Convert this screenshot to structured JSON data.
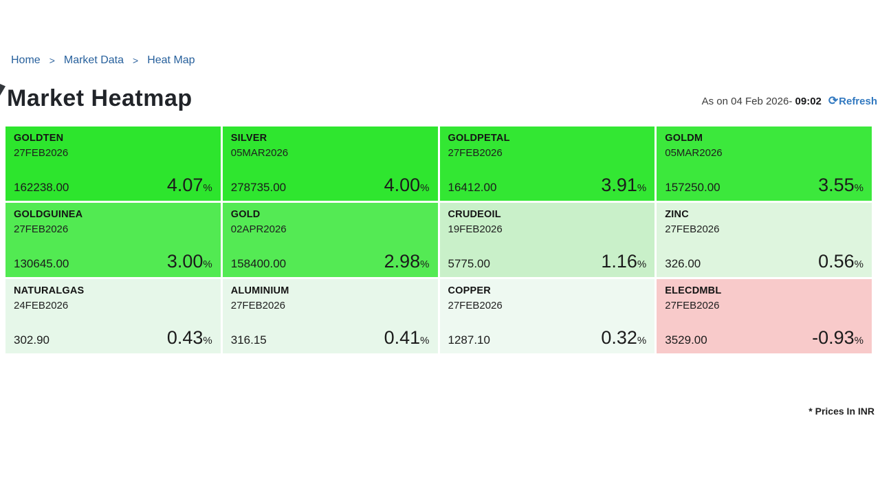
{
  "breadcrumb": {
    "separator": ">",
    "items": [
      {
        "label": "Home"
      },
      {
        "label": "Market Data"
      },
      {
        "label": "Heat Map"
      }
    ]
  },
  "header": {
    "title": "Market Heatmap",
    "as_on_prefix": "As on 04 Feb 2026- ",
    "as_on_time": "09:02",
    "refresh_icon": "⟳",
    "refresh_label": "Refresh"
  },
  "footer": {
    "note": "* Prices In INR"
  },
  "colors": {
    "link_blue": "#27609c",
    "refresh_blue": "#3279c0",
    "positive_strong": "#2fe62f",
    "negative": "#f8caca"
  },
  "chart_data": {
    "type": "heatmap",
    "title": "Market Heatmap",
    "value_unit": "%",
    "price_currency_note": "* Prices In INR",
    "tiles": [
      {
        "symbol": "GOLDTEN",
        "expiry": "27FEB2026",
        "price": "162238.00",
        "change_pct": "4.07",
        "bg": "#2de52d"
      },
      {
        "symbol": "SILVER",
        "expiry": "05MAR2026",
        "price": "278735.00",
        "change_pct": "4.00",
        "bg": "#2fe62f"
      },
      {
        "symbol": "GOLDPETAL",
        "expiry": "27FEB2026",
        "price": "16412.00",
        "change_pct": "3.91",
        "bg": "#33e733"
      },
      {
        "symbol": "GOLDM",
        "expiry": "05MAR2026",
        "price": "157250.00",
        "change_pct": "3.55",
        "bg": "#3ce83c"
      },
      {
        "symbol": "GOLDGUINEA",
        "expiry": "27FEB2026",
        "price": "130645.00",
        "change_pct": "3.00",
        "bg": "#52ea52"
      },
      {
        "symbol": "GOLD",
        "expiry": "02APR2026",
        "price": "158400.00",
        "change_pct": "2.98",
        "bg": "#54ea54"
      },
      {
        "symbol": "CRUDEOIL",
        "expiry": "19FEB2026",
        "price": "5775.00",
        "change_pct": "1.16",
        "bg": "#c9f0c9"
      },
      {
        "symbol": "ZINC",
        "expiry": "27FEB2026",
        "price": "326.00",
        "change_pct": "0.56",
        "bg": "#def5de"
      },
      {
        "symbol": "NATURALGAS",
        "expiry": "24FEB2026",
        "price": "302.90",
        "change_pct": "0.43",
        "bg": "#e6f7e9"
      },
      {
        "symbol": "ALUMINIUM",
        "expiry": "27FEB2026",
        "price": "316.15",
        "change_pct": "0.41",
        "bg": "#e7f7ea"
      },
      {
        "symbol": "COPPER",
        "expiry": "27FEB2026",
        "price": "1287.10",
        "change_pct": "0.32",
        "bg": "#eef9f1"
      },
      {
        "symbol": "ELECDMBL",
        "expiry": "27FEB2026",
        "price": "3529.00",
        "change_pct": "-0.93",
        "bg": "#f8caca"
      }
    ]
  }
}
